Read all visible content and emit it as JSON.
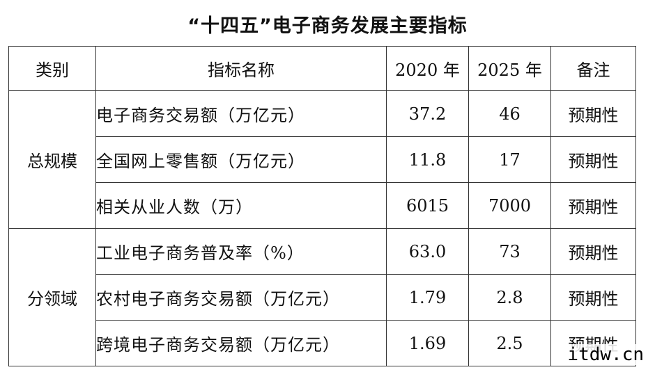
{
  "title": "“十四五”电子商务发展主要指标",
  "table": {
    "headers": {
      "category": "类别",
      "name": "指标名称",
      "year_2020": "2020 年",
      "year_2025": "2025 年",
      "note": "备注"
    },
    "groups": [
      {
        "category": "总规模",
        "rows": [
          {
            "name": "电子商务交易额（万亿元）",
            "v2020": "37.2",
            "v2025": "46",
            "note": "预期性"
          },
          {
            "name": "全国网上零售额（万亿元）",
            "v2020": "11.8",
            "v2025": "17",
            "note": "预期性"
          },
          {
            "name": "相关从业人数（万）",
            "v2020": "6015",
            "v2025": "7000",
            "note": "预期性"
          }
        ]
      },
      {
        "category": "分领域",
        "rows": [
          {
            "name": "工业电子商务普及率（%）",
            "v2020": "63.0",
            "v2025": "73",
            "note": "预期性"
          },
          {
            "name": "农村电子商务交易额（万亿元）",
            "v2020": "1.79",
            "v2025": "2.8",
            "note": "预期性"
          },
          {
            "name": "跨境电子商务交易额（万亿元）",
            "v2020": "1.69",
            "v2025": "2.5",
            "note": "预期性"
          }
        ]
      }
    ]
  },
  "watermark": "itdw.cn"
}
